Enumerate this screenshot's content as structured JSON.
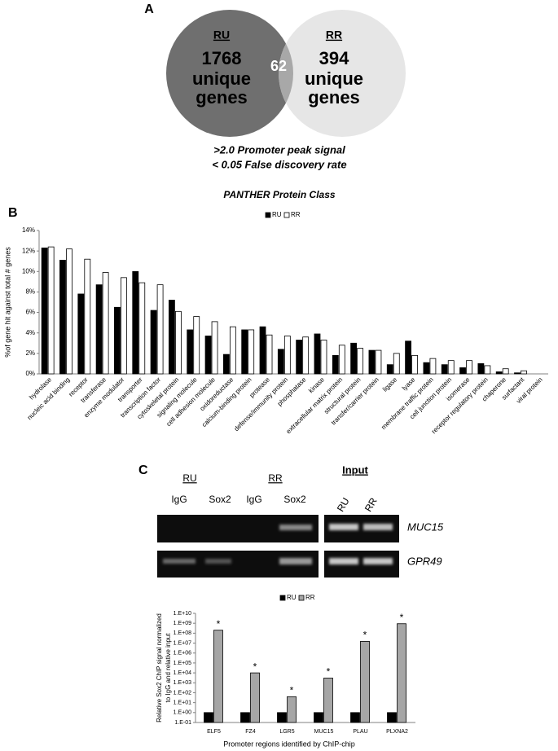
{
  "panel_labels": [
    "A",
    "B",
    "C"
  ],
  "venn": {
    "left": {
      "label": "RU",
      "count": 1768,
      "lines": [
        "unique",
        "genes"
      ]
    },
    "overlap": 62,
    "right": {
      "label": "RR",
      "count": 394,
      "lines": [
        "unique",
        "genes"
      ]
    },
    "caption": [
      ">2.0 Promoter peak signal",
      "< 0.05 False discovery rate"
    ]
  },
  "gel": {
    "group_labels": [
      "RU",
      "RR"
    ],
    "lane_labels": [
      "IgG",
      "Sox2",
      "IgG",
      "Sox2"
    ],
    "input_title": "Input",
    "input_lanes": [
      "RU",
      "RR"
    ],
    "genes": [
      "MUC15",
      "GPR49"
    ]
  },
  "chart_data": [
    {
      "type": "bar",
      "title": "PANTHER Protein Class",
      "y_label": "%of gene hit against total # genes",
      "categories": [
        "hydrolase",
        "nucleic acid binding",
        "receptor",
        "transferase",
        "enzyme modulator",
        "transporter",
        "transcription factor",
        "cytoskeletal protein",
        "signaling molecule",
        "cell adhesion molecule",
        "oxidoreductase",
        "calcium-binding protein",
        "protease",
        "defense/immunity protein",
        "phosphatase",
        "kinase",
        "extracellular matrix protein",
        "structural protein",
        "transfer/carrier protein",
        "ligase",
        "lyase",
        "membrane traffic protein",
        "cell junction protein",
        "isomerase",
        "receptor regulatory protein",
        "chaperone",
        "surfactant",
        "viral protein"
      ],
      "series": [
        {
          "name": "RU",
          "color": "#000000",
          "values": [
            12.3,
            11.1,
            7.8,
            8.7,
            6.5,
            10.0,
            6.2,
            7.2,
            4.3,
            3.7,
            1.9,
            4.3,
            4.6,
            2.4,
            3.3,
            3.9,
            1.8,
            3.0,
            2.3,
            0.9,
            3.2,
            1.1,
            0.9,
            0.6,
            1.0,
            0.2,
            0.1,
            0
          ]
        },
        {
          "name": "RR",
          "color": "#ffffff",
          "values": [
            12.4,
            12.2,
            11.2,
            9.9,
            9.4,
            8.9,
            8.7,
            6.1,
            5.6,
            5.1,
            4.6,
            4.3,
            3.8,
            3.7,
            3.6,
            3.3,
            2.8,
            2.5,
            2.3,
            2.0,
            1.8,
            1.5,
            1.3,
            1.3,
            0.8,
            0.5,
            0.3,
            0
          ]
        }
      ],
      "ylim": [
        0,
        14
      ],
      "yticks": [
        {
          "value": 0,
          "label": "0%"
        },
        {
          "value": 2,
          "label": "2%"
        },
        {
          "value": 4,
          "label": "4%"
        },
        {
          "value": 6,
          "label": "6%"
        },
        {
          "value": 8,
          "label": "8%"
        },
        {
          "value": 10,
          "label": "10%"
        },
        {
          "value": 12,
          "label": "12%"
        },
        {
          "value": 14,
          "label": "14%"
        }
      ],
      "grid": false,
      "log": false,
      "legend": "top"
    },
    {
      "type": "bar",
      "y_label": [
        "Relative Sox2 ChIP signal normalized",
        "to IgG and relative input"
      ],
      "x_label": "Promoter regions identified by ChIP-chip",
      "categories": [
        "ELF5",
        "FZ4",
        "LGR5",
        "MUC15",
        "PLAU",
        "PLXNA2"
      ],
      "series": [
        {
          "name": "RU",
          "color": "#000000",
          "values": [
            1,
            1,
            1,
            1,
            1,
            1
          ]
        },
        {
          "name": "RR",
          "color": "#a6a6a6",
          "values": [
            200000000,
            10000,
            40,
            3000,
            15000000,
            900000000
          ]
        }
      ],
      "annotations": [
        "*",
        "*",
        "*",
        "*",
        "*",
        "*"
      ],
      "ylim": [
        0.1,
        10000000000
      ],
      "yticks": [
        {
          "value": 0.1,
          "label": "1.E-01"
        },
        {
          "value": 1,
          "label": "1.E+00"
        },
        {
          "value": 10,
          "label": "1.E+01"
        },
        {
          "value": 100,
          "label": "1.E+02"
        },
        {
          "value": 1000,
          "label": "1.E+03"
        },
        {
          "value": 10000,
          "label": "1.E+04"
        },
        {
          "value": 100000,
          "label": "1.E+05"
        },
        {
          "value": 1000000,
          "label": "1.E+06"
        },
        {
          "value": 10000000,
          "label": "1.E+07"
        },
        {
          "value": 100000000,
          "label": "1.E+08"
        },
        {
          "value": 1000000000,
          "label": "1.E+09"
        },
        {
          "value": 10000000000,
          "label": "1.E+10"
        }
      ],
      "grid": false,
      "log": true,
      "legend": "top"
    }
  ]
}
